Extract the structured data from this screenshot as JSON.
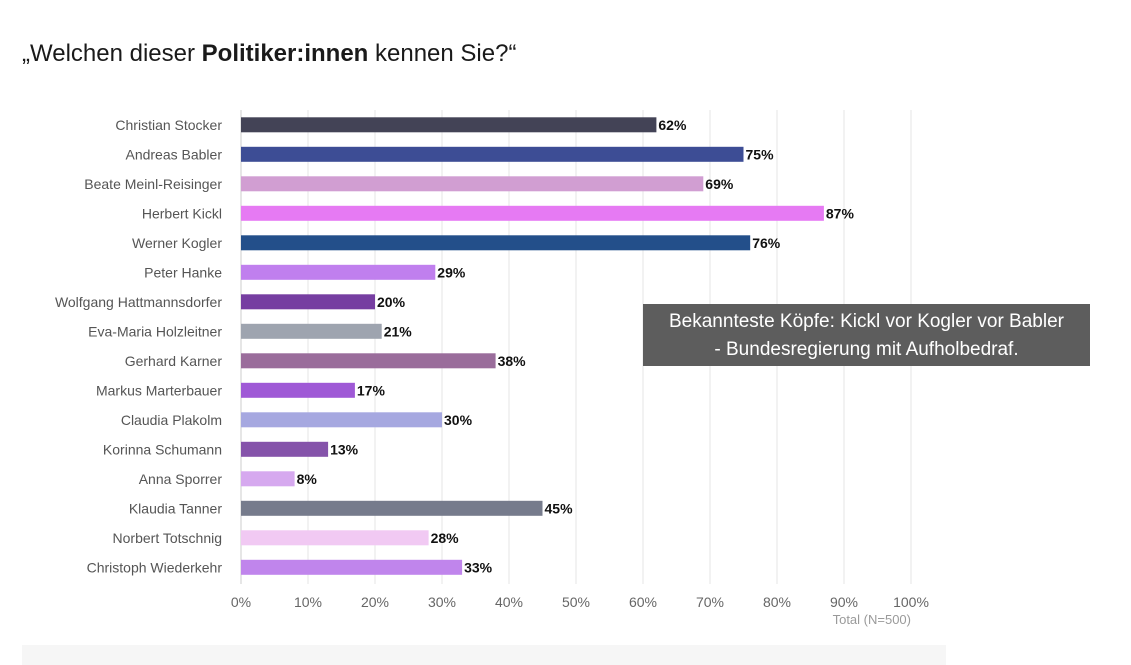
{
  "title": {
    "open_quote": "„",
    "prefix": "Welchen dieser ",
    "bold": "Politiker:innen",
    "suffix": " kennen Sie?“"
  },
  "callout": {
    "line1": "Bekannteste Köpfe: Kickl vor Kogler vor Babler",
    "line2": "- Bundesregierung mit Aufholbedraf."
  },
  "chart_data": {
    "type": "bar",
    "orientation": "horizontal",
    "categories": [
      "Christian Stocker",
      "Andreas Babler",
      "Beate Meinl-Reisinger",
      "Herbert Kickl",
      "Werner Kogler",
      "Peter Hanke",
      "Wolfgang Hattmannsdorfer",
      "Eva-Maria Holzleitner",
      "Gerhard Karner",
      "Markus Marterbauer",
      "Claudia Plakolm",
      "Korinna Schumann",
      "Anna Sporrer",
      "Klaudia Tanner",
      "Norbert Totschnig",
      "Christoph Wiederkehr"
    ],
    "values": [
      62,
      75,
      69,
      87,
      76,
      29,
      20,
      21,
      38,
      17,
      30,
      13,
      8,
      45,
      28,
      33
    ],
    "value_labels": [
      "62%",
      "75%",
      "69%",
      "87%",
      "76%",
      "29%",
      "20%",
      "21%",
      "38%",
      "17%",
      "30%",
      "13%",
      "8%",
      "45%",
      "28%",
      "33%"
    ],
    "colors": [
      "#434356",
      "#3d4d95",
      "#d19ed2",
      "#e67af3",
      "#234f8a",
      "#c07fee",
      "#763ea1",
      "#9ea4af",
      "#9a6d9b",
      "#9f59d6",
      "#a6a8e0",
      "#8553aa",
      "#d6a9ef",
      "#767b8c",
      "#f1c9f3",
      "#c085ec"
    ],
    "x_ticks": [
      "0%",
      "10%",
      "20%",
      "30%",
      "40%",
      "50%",
      "60%",
      "70%",
      "80%",
      "90%",
      "100%"
    ],
    "xlim": [
      0,
      100
    ],
    "grid": true,
    "note": "Total (N=500)"
  }
}
